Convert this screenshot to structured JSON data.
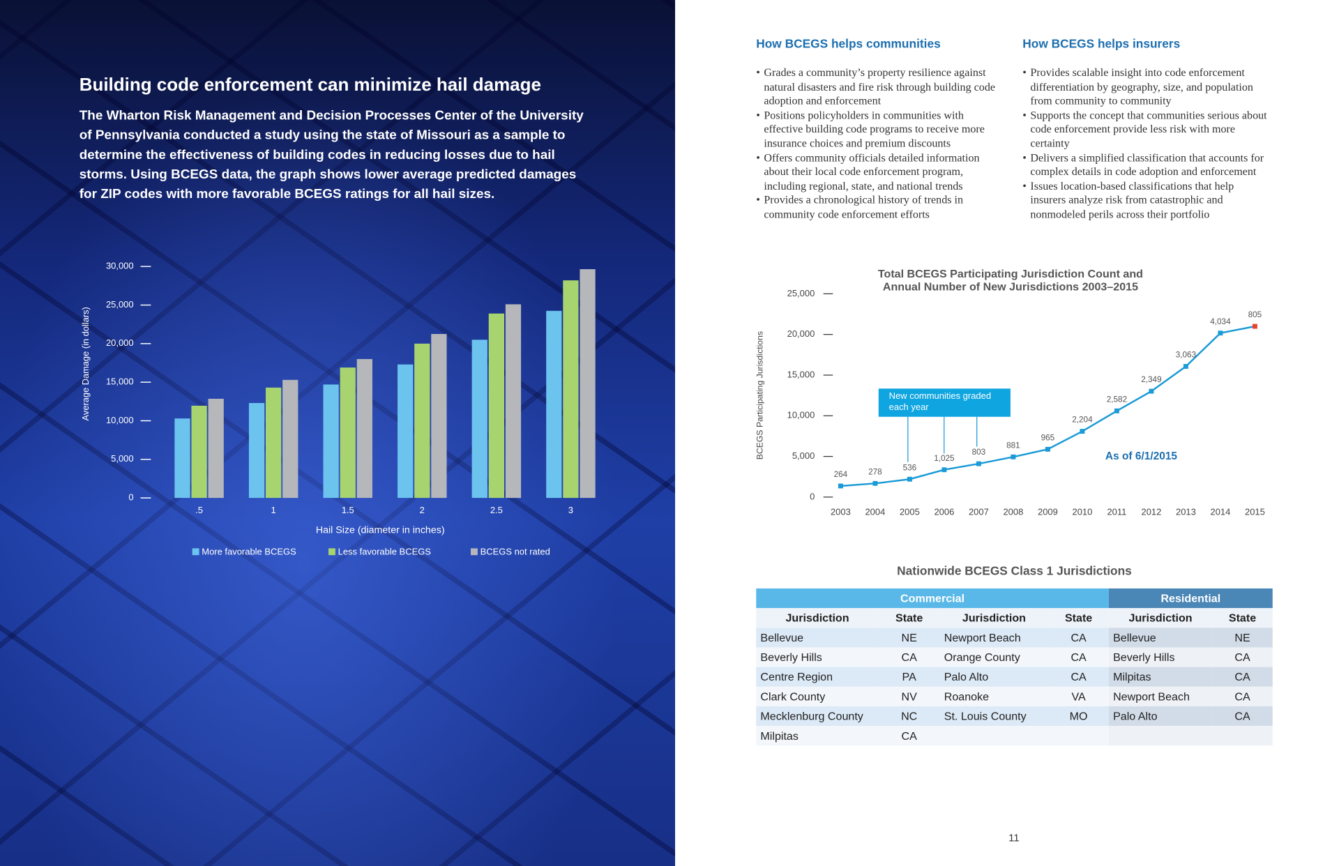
{
  "left": {
    "title": "Building code enforcement can minimize hail damage",
    "body": "The Wharton Risk Management and Decision Processes Center of the University of Pennsylvania conducted a study using the state of Missouri as a sample to determine the effectiveness of building codes in reducing losses due to hail storms. Using BCEGS data, the graph shows lower average predicted damages for ZIP codes with more favorable BCEGS ratings for all hail sizes."
  },
  "chart_data": [
    {
      "type": "bar",
      "x_label": "Hail Size (diameter in inches)",
      "y_label": "Average Damage (in dollars)",
      "categories": [
        ".5",
        "1",
        "1.5",
        "2",
        "2.5",
        "3"
      ],
      "series": [
        {
          "name": "More favorable BCEGS",
          "color": "#6cc4ee",
          "values": [
            10300,
            12300,
            14700,
            17300,
            20500,
            24250
          ]
        },
        {
          "name": "Less favorable BCEGS",
          "color": "#a8d46f",
          "values": [
            11950,
            14300,
            16900,
            20000,
            23900,
            28200
          ]
        },
        {
          "name": "BCEGS not rated",
          "color": "#b6b7bb",
          "values": [
            12850,
            15300,
            18000,
            21250,
            25100,
            29650
          ]
        }
      ],
      "ylim": [
        0,
        30000
      ],
      "yticks": [
        0,
        {
          "value": 5000,
          "label": "5,000"
        },
        {
          "value": 10000,
          "label": "10,000"
        },
        {
          "value": 15000,
          "label": "15,000"
        },
        {
          "value": 20000,
          "label": "20,000"
        },
        {
          "value": 25000,
          "label": "25,000"
        },
        {
          "value": 30000,
          "label": "30,000"
        }
      ],
      "grid": false,
      "legend": "bottom"
    },
    {
      "type": "line",
      "title": "Total BCEGS Participating Jurisdiction Count and Annual Number of New Jurisdictions 2003–2015",
      "y_label": "BCEGS Participating Jurisdictions",
      "x": [
        2003,
        2004,
        2005,
        2006,
        2007,
        2008,
        2009,
        2010,
        2011,
        2012,
        2013,
        2014,
        2015
      ],
      "values": [
        1365,
        1680,
        2200,
        3360,
        4100,
        4940,
        5880,
        8090,
        10600,
        13020,
        16070,
        20170,
        21000
      ],
      "point_labels": [
        "264",
        "278",
        "536",
        "1,025",
        "803",
        "881",
        "965",
        "2,204",
        "2,582",
        "2,349",
        "3,063",
        "4,034",
        "805"
      ],
      "color": "#1a9ad6",
      "last_point_color": "#e8452c",
      "xlim": [
        2003,
        2015
      ],
      "xticks": [
        2003,
        2004,
        2005,
        2006,
        2007,
        2008,
        2009,
        2010,
        2011,
        2012,
        2013,
        2014,
        2015
      ],
      "ylim": [
        0,
        25000
      ],
      "yticks": [
        0,
        {
          "value": 5000,
          "label": "5,000"
        },
        {
          "value": 10000,
          "label": "10,000"
        },
        {
          "value": 15000,
          "label": "15,000"
        },
        {
          "value": 20000,
          "label": "20,000"
        },
        {
          "value": 25000,
          "label": "25,000"
        }
      ],
      "grid": false,
      "annotation": "New communities graded each year",
      "note": "As of 6/1/2015"
    }
  ],
  "right": {
    "columns": [
      {
        "heading": "How BCEGS helps communities",
        "bullets": [
          "Grades a community’s property resilience against natural disasters and fire risk through building code adoption and enforcement",
          "Positions policyholders in communities with effective building code programs to receive more insurance choices and premium discounts",
          "Offers community officials detailed information about their local code enforcement program, including regional, state, and national trends",
          "Provides a chronological history of trends in community code enforcement efforts"
        ]
      },
      {
        "heading": "How BCEGS helps insurers",
        "bullets": [
          "Provides scalable insight into code enforcement differentiation by geography, size, and population from community to community",
          "Supports the concept that communities serious about code enforcement provide less risk with more certainty",
          "Delivers a simplified classification that accounts for complex details in code adoption and enforcement",
          "Issues location-based classifications that help insurers analyze risk from catastrophic and nonmodeled perils across their portfolio"
        ]
      }
    ]
  },
  "table": {
    "title": "Nationwide BCEGS Class 1 Jurisdictions",
    "groups": [
      "Commercial",
      "Residential"
    ],
    "header": [
      "Jurisdiction",
      "State",
      "Jurisdiction",
      "State",
      "Jurisdiction",
      "State"
    ],
    "rows": [
      [
        "Bellevue",
        "NE",
        "Newport Beach",
        "CA",
        "Bellevue",
        "NE"
      ],
      [
        "Beverly Hills",
        "CA",
        "Orange County",
        "CA",
        "Beverly Hills",
        "CA"
      ],
      [
        "Centre Region",
        "PA",
        "Palo Alto",
        "CA",
        "Milpitas",
        "CA"
      ],
      [
        "Clark County",
        "NV",
        "Roanoke",
        "VA",
        "Newport Beach",
        "CA"
      ],
      [
        "Mecklenburg County",
        "NC",
        "St. Louis County",
        "MO",
        "Palo Alto",
        "CA"
      ],
      [
        "Milpitas",
        "CA",
        null,
        null,
        null,
        null
      ]
    ]
  },
  "page_number": "11"
}
